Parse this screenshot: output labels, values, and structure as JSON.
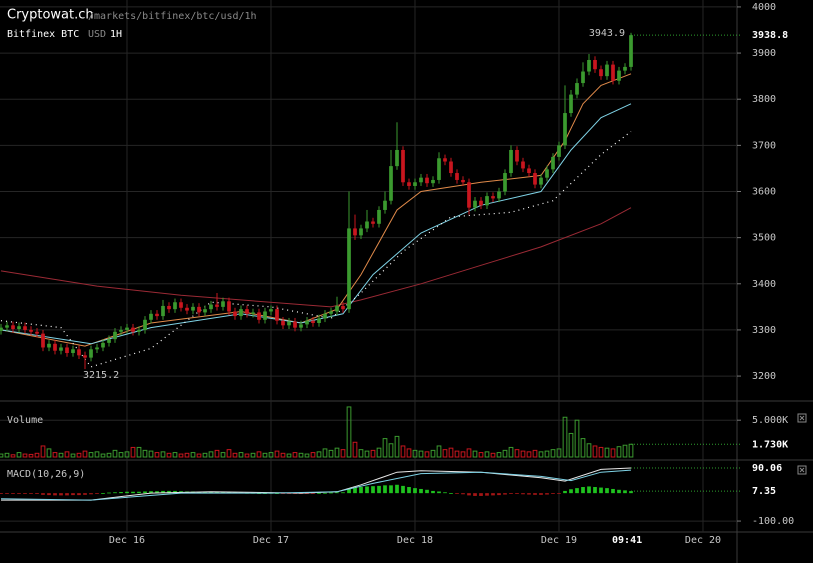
{
  "header": {
    "site": "Cryptowat.ch",
    "path": "/markets/bitfinex/btc/usd/1h",
    "market": "Bitfinex BTC",
    "quote": "USD",
    "period": "1H"
  },
  "chart_data": [
    {
      "type": "candlestick",
      "up_color": "#3b9a2f",
      "down_color": "#c8161e",
      "grid": true,
      "xlim": [
        -0.1667,
        122.667
      ],
      "xticks": [
        {
          "value": 21,
          "label": "Dec 16"
        },
        {
          "value": 45,
          "label": "Dec 17"
        },
        {
          "value": 69,
          "label": "Dec 18"
        },
        {
          "value": 93,
          "label": "Dec 19"
        },
        {
          "value": 117,
          "label": "Dec 20"
        }
      ],
      "current_time": {
        "value": 102.68,
        "label": "09:41"
      },
      "ylim": [
        3146,
        4015
      ],
      "yticks": [
        3200,
        3300,
        3400,
        3500,
        3600,
        3700,
        3800,
        3900,
        4000
      ],
      "open": [
        3298,
        3305,
        3310,
        3302,
        3308,
        3300,
        3296,
        3292,
        3262,
        3270,
        3255,
        3262,
        3250,
        3258,
        3245,
        3240,
        3258,
        3262,
        3272,
        3280,
        3296,
        3300,
        3305,
        3296,
        3300,
        3322,
        3335,
        3330,
        3352,
        3345,
        3360,
        3348,
        3342,
        3350,
        3338,
        3345,
        3355,
        3350,
        3362,
        3340,
        3330,
        3345,
        3335,
        3338,
        3322,
        3340,
        3345,
        3320,
        3310,
        3318,
        3305,
        3312,
        3320,
        3315,
        3325,
        3335,
        3340,
        3352,
        3345,
        3520,
        3505,
        3520,
        3535,
        3530,
        3560,
        3580,
        3655,
        3690,
        3620,
        3612,
        3620,
        3630,
        3618,
        3625,
        3672,
        3665,
        3640,
        3625,
        3620,
        3565,
        3580,
        3570,
        3590,
        3585,
        3600,
        3640,
        3690,
        3665,
        3650,
        3640,
        3615,
        3630,
        3648,
        3675,
        3700,
        3770,
        3810,
        3835,
        3860,
        3885,
        3865,
        3850,
        3875,
        3840,
        3862,
        3870
      ],
      "high": [
        3313,
        3318,
        3318,
        3316,
        3316,
        3308,
        3304,
        3300,
        3278,
        3278,
        3270,
        3270,
        3266,
        3266,
        3253,
        3266,
        3270,
        3280,
        3288,
        3304,
        3308,
        3313,
        3313,
        3308,
        3330,
        3343,
        3343,
        3365,
        3360,
        3368,
        3368,
        3356,
        3358,
        3358,
        3353,
        3363,
        3380,
        3370,
        3370,
        3348,
        3353,
        3353,
        3346,
        3346,
        3348,
        3353,
        3353,
        3328,
        3326,
        3326,
        3320,
        3328,
        3328,
        3333,
        3343,
        3348,
        3372,
        3360,
        3600,
        3550,
        3528,
        3560,
        3543,
        3568,
        3600,
        3690,
        3750,
        3698,
        3628,
        3628,
        3638,
        3638,
        3633,
        3685,
        3680,
        3673,
        3648,
        3633,
        3628,
        3588,
        3588,
        3598,
        3598,
        3608,
        3648,
        3700,
        3698,
        3673,
        3658,
        3648,
        3638,
        3656,
        3683,
        3708,
        3830,
        3820,
        3845,
        3880,
        3898,
        3893,
        3873,
        3883,
        3883,
        3870,
        3878,
        3943.9
      ],
      "low": [
        3290,
        3297,
        3294,
        3294,
        3292,
        3288,
        3284,
        3254,
        3254,
        3247,
        3247,
        3242,
        3242,
        3237,
        3215.2,
        3232,
        3250,
        3254,
        3264,
        3272,
        3288,
        3292,
        3288,
        3288,
        3292,
        3314,
        3322,
        3322,
        3337,
        3337,
        3340,
        3334,
        3334,
        3330,
        3330,
        3337,
        3342,
        3342,
        3332,
        3322,
        3322,
        3327,
        3327,
        3314,
        3314,
        3332,
        3312,
        3302,
        3302,
        3297,
        3297,
        3304,
        3307,
        3307,
        3317,
        3327,
        3332,
        3337,
        3337,
        3495,
        3497,
        3512,
        3522,
        3522,
        3552,
        3572,
        3647,
        3612,
        3604,
        3604,
        3612,
        3610,
        3610,
        3617,
        3657,
        3632,
        3617,
        3612,
        3550,
        3557,
        3562,
        3562,
        3577,
        3577,
        3592,
        3632,
        3657,
        3642,
        3632,
        3607,
        3607,
        3622,
        3640,
        3667,
        3692,
        3762,
        3802,
        3827,
        3852,
        3857,
        3842,
        3842,
        3832,
        3832,
        3854,
        3862
      ],
      "close": [
        3305,
        3310,
        3302,
        3308,
        3300,
        3296,
        3292,
        3262,
        3270,
        3255,
        3262,
        3250,
        3258,
        3245,
        3240,
        3258,
        3262,
        3272,
        3280,
        3296,
        3300,
        3305,
        3296,
        3300,
        3322,
        3335,
        3330,
        3352,
        3345,
        3360,
        3348,
        3342,
        3350,
        3338,
        3345,
        3355,
        3350,
        3362,
        3340,
        3330,
        3345,
        3335,
        3338,
        3322,
        3340,
        3345,
        3320,
        3310,
        3318,
        3305,
        3312,
        3320,
        3315,
        3325,
        3335,
        3340,
        3352,
        3345,
        3520,
        3505,
        3520,
        3535,
        3530,
        3560,
        3580,
        3655,
        3690,
        3620,
        3612,
        3620,
        3630,
        3618,
        3625,
        3672,
        3665,
        3640,
        3625,
        3620,
        3565,
        3580,
        3570,
        3590,
        3585,
        3600,
        3640,
        3690,
        3665,
        3650,
        3640,
        3615,
        3630,
        3648,
        3675,
        3700,
        3770,
        3810,
        3835,
        3860,
        3885,
        3865,
        3850,
        3875,
        3840,
        3862,
        3870,
        3938.8
      ],
      "lines": [
        {
          "color": "#9b2a35",
          "dash": false,
          "x": [
            0,
            16,
            30,
            55,
            60,
            70,
            80,
            90,
            100,
            105
          ],
          "values": [
            3428,
            3395,
            3375,
            3350,
            3365,
            3400,
            3440,
            3480,
            3530,
            3565
          ]
        },
        {
          "color": "#e08a4a",
          "dash": false,
          "x": [
            0,
            14,
            25,
            40,
            50,
            56,
            60,
            66,
            70,
            80,
            90,
            94,
            97,
            100,
            105
          ],
          "values": [
            3300,
            3265,
            3315,
            3340,
            3315,
            3345,
            3420,
            3560,
            3600,
            3620,
            3635,
            3710,
            3790,
            3830,
            3855
          ]
        },
        {
          "color": "#7fd3e6",
          "dash": false,
          "x": [
            0,
            15,
            25,
            40,
            50,
            57,
            62,
            70,
            80,
            90,
            95,
            100,
            105
          ],
          "values": [
            3300,
            3270,
            3305,
            3335,
            3315,
            3335,
            3420,
            3510,
            3570,
            3600,
            3690,
            3760,
            3790
          ]
        },
        {
          "color": "#ffffff",
          "dash": true,
          "x": [
            0,
            10,
            15,
            25,
            35,
            45,
            55,
            60,
            67,
            75,
            85,
            92,
            100,
            105
          ],
          "values": [
            3320,
            3305,
            3220,
            3260,
            3360,
            3350,
            3325,
            3380,
            3470,
            3545,
            3555,
            3580,
            3680,
            3730
          ]
        }
      ],
      "high_label": "3943.9",
      "low_label": "3215.2",
      "last_label": "3938.8"
    },
    {
      "type": "bar",
      "title": "Volume",
      "ylim": [
        0,
        7336
      ],
      "yticks": [
        {
          "value": 5000,
          "label": "5.000K"
        }
      ],
      "values": [
        400,
        500,
        300,
        600,
        400,
        350,
        500,
        1500,
        1100,
        600,
        500,
        700,
        400,
        500,
        800,
        600,
        700,
        400,
        500,
        900,
        600,
        700,
        1300,
        1300,
        900,
        800,
        600,
        700,
        500,
        600,
        400,
        500,
        600,
        400,
        500,
        700,
        900,
        600,
        1000,
        500,
        600,
        400,
        500,
        700,
        500,
        600,
        800,
        500,
        400,
        600,
        500,
        400,
        600,
        700,
        1100,
        900,
        1200,
        1000,
        6800,
        2000,
        1000,
        800,
        900,
        1200,
        2500,
        1800,
        2800,
        1500,
        1100,
        900,
        800,
        700,
        900,
        1500,
        1000,
        1200,
        800,
        700,
        1100,
        800,
        600,
        700,
        500,
        600,
        900,
        1300,
        1000,
        800,
        700,
        900,
        700,
        800,
        1000,
        1100,
        5400,
        3200,
        5000,
        2500,
        1800,
        1500,
        1300,
        1200,
        1100,
        1400,
        1600,
        1730
      ],
      "last_label": "1.730K"
    },
    {
      "type": "macd",
      "title": "MACD(10,26,9)",
      "ylim": [
        -132,
        108
      ],
      "yticks": [
        {
          "value": -100,
          "label": "-100.00"
        }
      ],
      "up_color": "#1fc21f",
      "down_color": "#a31515",
      "histogram": [
        -3,
        -2,
        -2,
        -1,
        -1,
        -2,
        -3,
        -6,
        -7,
        -8,
        -8,
        -8,
        -7,
        -7,
        -6,
        -4,
        -2,
        0,
        2,
        3,
        4,
        5,
        5,
        5,
        6,
        7,
        7,
        8,
        8,
        8,
        7,
        6,
        6,
        5,
        5,
        5,
        5,
        4,
        3,
        2,
        2,
        1,
        1,
        0,
        0,
        1,
        0,
        -1,
        -1,
        -2,
        -2,
        -1,
        -1,
        0,
        1,
        2,
        3,
        3,
        15,
        20,
        22,
        24,
        25,
        26,
        28,
        28,
        30,
        26,
        22,
        18,
        15,
        12,
        8,
        6,
        3,
        0,
        -2,
        -4,
        -8,
        -10,
        -10,
        -9,
        -8,
        -7,
        -5,
        -3,
        -3,
        -4,
        -5,
        -6,
        -6,
        -5,
        -3,
        -1,
        8,
        14,
        18,
        22,
        24,
        22,
        20,
        18,
        15,
        12,
        10,
        7.35
      ],
      "lines": [
        {
          "color": "#e8e8e8",
          "x": [
            0,
            15,
            25,
            35,
            50,
            56,
            60,
            66,
            70,
            80,
            90,
            94,
            100,
            105
          ],
          "values": [
            -25,
            -25,
            0,
            5,
            0,
            5,
            30,
            75,
            80,
            75,
            55,
            43,
            85,
            90.06
          ]
        },
        {
          "color": "#7fd3e6",
          "x": [
            0,
            15,
            30,
            45,
            56,
            62,
            70,
            80,
            90,
            95,
            100,
            105
          ],
          "values": [
            -20,
            -25,
            0,
            0,
            5,
            35,
            70,
            75,
            60,
            45,
            75,
            82.71
          ]
        }
      ],
      "macd_last_label": "90.06",
      "hist_last_label": "7.35"
    }
  ]
}
